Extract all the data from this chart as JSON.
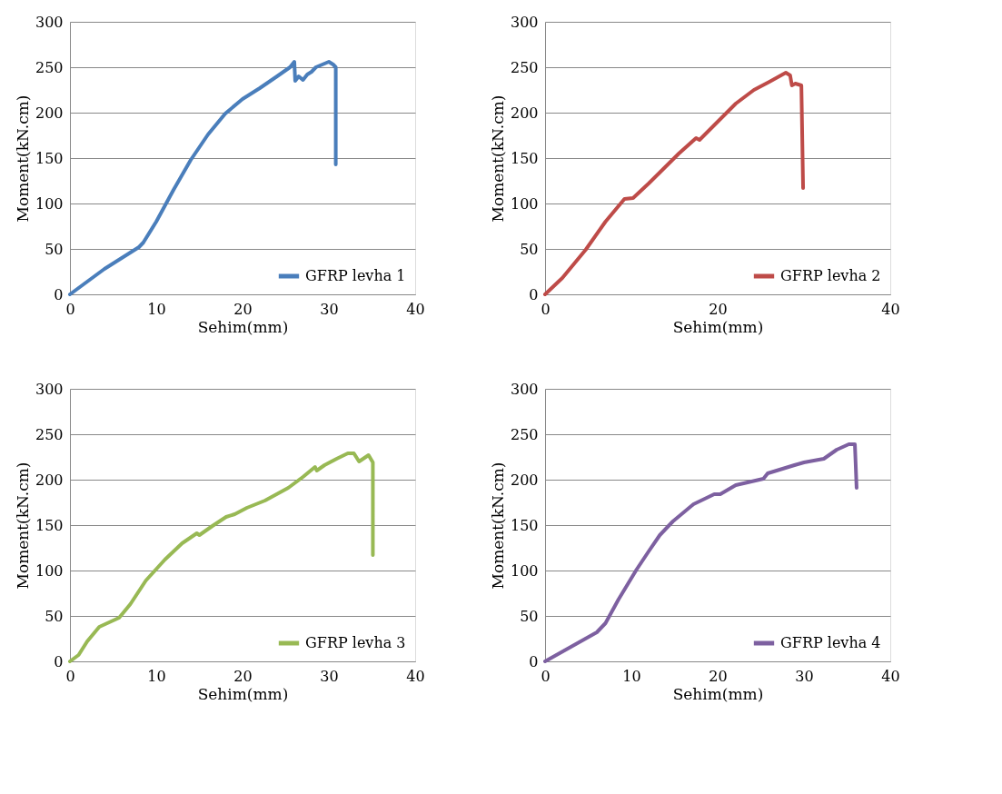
{
  "chart_data": [
    {
      "type": "line",
      "xlabel": "Sehim(mm)",
      "ylabel": "Moment(kN.cm)",
      "xlim": [
        0,
        40
      ],
      "ylim": [
        0,
        300
      ],
      "xticks": [
        0,
        10,
        20,
        30,
        40
      ],
      "yticks": [
        0,
        50,
        100,
        150,
        200,
        250,
        300
      ],
      "grid": "y",
      "legend": "bottom right",
      "line_style": "solid",
      "series": [
        {
          "name": "GFRP levha 1",
          "color": "#4a7ebb",
          "x": [
            0,
            2,
            4,
            6,
            8,
            8.5,
            10,
            12,
            14,
            16,
            18,
            20,
            22,
            24,
            25.5,
            26,
            26.1,
            26.5,
            27,
            27.5,
            28,
            28.5,
            29,
            29.5,
            30,
            30.5,
            30.8,
            30.8
          ],
          "values": [
            0,
            14,
            28,
            40,
            52,
            57,
            80,
            115,
            148,
            176,
            199,
            215,
            227,
            240,
            250,
            256,
            235,
            240,
            236,
            242,
            245,
            250,
            252,
            254,
            256,
            253,
            250,
            143
          ]
        }
      ]
    },
    {
      "type": "line",
      "xlabel": "Sehim(mm)",
      "ylabel": "Moment(kN.cm)",
      "xlim": [
        0,
        40
      ],
      "ylim": [
        0,
        300
      ],
      "xticks": [
        0,
        20,
        40
      ],
      "yticks": [
        0,
        50,
        100,
        150,
        200,
        250,
        300
      ],
      "grid": "y",
      "legend": "bottom right",
      "line_style": "solid",
      "series": [
        {
          "name": "GFRP levha 2",
          "color": "#be4b48",
          "x": [
            0,
            2,
            4.7,
            7,
            9.2,
            10.2,
            12,
            13.7,
            15.5,
            17.5,
            17.9,
            20,
            22.1,
            24.2,
            26,
            27.9,
            28.4,
            28.6,
            29,
            29.7,
            29.9
          ],
          "values": [
            0,
            18,
            49,
            80,
            105,
            106,
            122,
            138,
            155,
            172,
            170,
            190,
            210,
            225,
            234,
            244,
            241,
            230,
            232,
            230,
            117
          ]
        }
      ]
    },
    {
      "type": "line",
      "xlabel": "Sehim(mm)",
      "ylabel": "Moment(kN.cm)",
      "xlim": [
        0,
        40
      ],
      "ylim": [
        0,
        300
      ],
      "xticks": [
        0,
        10,
        20,
        30,
        40
      ],
      "yticks": [
        0,
        50,
        100,
        150,
        200,
        250,
        300
      ],
      "grid": "y",
      "legend": "bottom right",
      "line_style": "solid",
      "series": [
        {
          "name": "GFRP levha 3",
          "color": "#98b954",
          "x": [
            0,
            1,
            2,
            3.4,
            5.7,
            7,
            8.8,
            11,
            13,
            14.7,
            15,
            16.5,
            18.1,
            19.1,
            20.5,
            22.6,
            25.3,
            27,
            28.4,
            28.6,
            29.5,
            30.9,
            32.2,
            32.9,
            33.5,
            34.6,
            35.1,
            35.1
          ],
          "values": [
            0,
            7,
            22,
            38,
            48,
            63,
            89,
            112,
            130,
            141,
            139,
            149,
            159,
            162,
            169,
            177,
            191,
            203,
            214,
            210,
            216,
            223,
            229,
            229,
            220,
            227,
            219,
            117
          ]
        }
      ]
    },
    {
      "type": "line",
      "xlabel": "Sehim(mm)",
      "ylabel": "Moment(kN.cm)",
      "xlim": [
        0,
        40
      ],
      "ylim": [
        0,
        300
      ],
      "xticks": [
        0,
        10,
        20,
        30,
        40
      ],
      "yticks": [
        0,
        50,
        100,
        150,
        200,
        250,
        300
      ],
      "grid": "y",
      "legend": "bottom right",
      "line_style": "solid",
      "series": [
        {
          "name": "GFRP levha 4",
          "color": "#7d60a0",
          "x": [
            0,
            3,
            6,
            7,
            8.5,
            10.6,
            12,
            13.3,
            14.8,
            17.2,
            19.6,
            20.3,
            22.1,
            25.3,
            25.8,
            28.9,
            30,
            32.3,
            33.8,
            35.2,
            35.9,
            36.1
          ],
          "values": [
            0,
            16,
            32,
            42,
            68,
            101,
            121,
            139,
            154,
            173,
            184,
            184,
            194,
            201,
            207,
            216,
            219,
            223,
            233,
            239,
            239,
            191
          ]
        }
      ]
    }
  ]
}
